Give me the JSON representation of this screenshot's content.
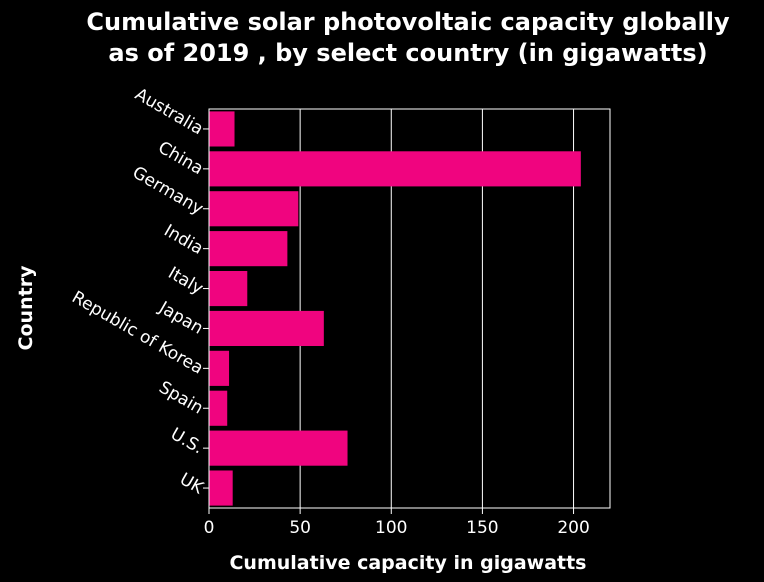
{
  "chart_data": {
    "type": "bar",
    "orientation": "horizontal",
    "title": "Cumulative solar photovoltaic capacity globally as of 2019 , by select country (in gigawatts)",
    "title_lines": [
      "Cumulative solar photovoltaic capacity globally",
      "as of 2019 , by select country (in gigawatts)"
    ],
    "xlabel": "Cumulative capacity in gigawatts",
    "ylabel": "Country",
    "categories": [
      "Australia",
      "China",
      "Germany",
      "India",
      "Italy",
      "Japan",
      "Republic of Korea",
      "Spain",
      "U.S.",
      "UK"
    ],
    "values": [
      14,
      204,
      49,
      43,
      21,
      63,
      11,
      10,
      76,
      13
    ],
    "xlim": [
      0,
      220
    ],
    "xticks": [
      0,
      50,
      100,
      150,
      200
    ],
    "xtick_labels": [
      "0",
      "50",
      "100",
      "150",
      "200"
    ],
    "grid": "vertical",
    "legend": "none",
    "colors": {
      "background": "#000000",
      "bar": "#f0047f",
      "text": "#ffffff",
      "grid": "#ffffff"
    }
  }
}
